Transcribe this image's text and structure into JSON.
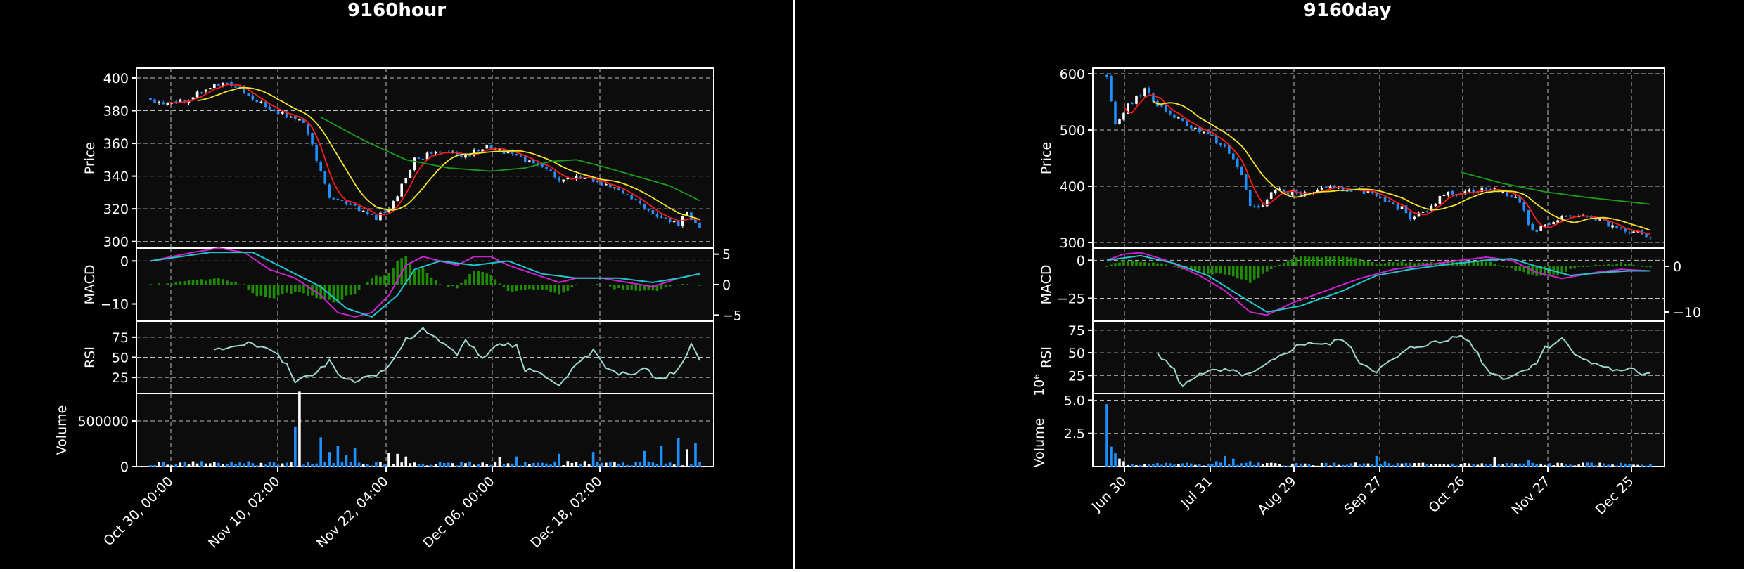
{
  "colors": {
    "background": "#000000",
    "axes_bg": "#0c0c0c",
    "frame": "#ffffff",
    "grid": "#bdbdbd",
    "up": "#ffffff",
    "down": "#1e90ff",
    "sma_short": "#ff1a1a",
    "sma_mid": "#f2e22a",
    "sma_long": "#1a9c1a",
    "macd_line": "#cc22cc",
    "signal_line": "#22c4cc",
    "macd_hist": "#1e8c00",
    "rsi_line": "#9cd6cc",
    "text": "#ffffff"
  },
  "charts": [
    {
      "id": "hour",
      "title": "9160hour",
      "price_label": "Price",
      "macd_label": "MACD",
      "rsi_label": "RSI",
      "volume_label": "Volume",
      "volume_exponent": "",
      "x_tick_labels": [
        "Oct 30, 00:00",
        "Nov 10, 02:00",
        "Nov 22, 04:00",
        "Dec 06, 00:00",
        "Dec 18, 02:00"
      ],
      "price_ticks": [
        "300",
        "320",
        "340",
        "360",
        "380",
        "400"
      ],
      "macd_left_ticks": [
        "0",
        "−10"
      ],
      "macd_right_ticks": [
        "5",
        "0",
        "−5"
      ],
      "rsi_ticks": [
        "75",
        "50",
        "25"
      ],
      "volume_ticks": [
        "500000",
        "0"
      ]
    },
    {
      "id": "day",
      "title": "9160day",
      "price_label": "Price",
      "macd_label": "MACD",
      "rsi_label": "RSI",
      "volume_label": "Volume",
      "volume_exponent": "10⁶",
      "x_tick_labels": [
        "Jun 30",
        "Jul 31",
        "Aug 29",
        "Sep 27",
        "Oct 26",
        "Nov 27",
        "Dec 25"
      ],
      "price_ticks": [
        "300",
        "400",
        "500",
        "600"
      ],
      "macd_left_ticks": [
        "0",
        "−25"
      ],
      "macd_right_ticks": [
        "0",
        "−10"
      ],
      "rsi_ticks": [
        "75",
        "50",
        "25"
      ],
      "volume_ticks": [
        "5.0",
        "2.5"
      ]
    }
  ],
  "chart_data": [
    {
      "type": "candlestick",
      "title": "9160hour",
      "ylabel": "Price",
      "ylim": [
        296,
        406
      ],
      "x_tick_labels": [
        "Oct 30, 00:00",
        "Nov 10, 02:00",
        "Nov 22, 04:00",
        "Dec 06, 00:00",
        "Dec 18, 02:00"
      ],
      "n_bars": 130,
      "close_anchors": [
        [
          0,
          386
        ],
        [
          6,
          384
        ],
        [
          12,
          392
        ],
        [
          18,
          398
        ],
        [
          22,
          392
        ],
        [
          27,
          383
        ],
        [
          32,
          377
        ],
        [
          36,
          372
        ],
        [
          38,
          358
        ],
        [
          40,
          342
        ],
        [
          42,
          328
        ],
        [
          46,
          324
        ],
        [
          50,
          318
        ],
        [
          53,
          314
        ],
        [
          56,
          320
        ],
        [
          58,
          328
        ],
        [
          60,
          340
        ],
        [
          62,
          350
        ],
        [
          66,
          354
        ],
        [
          70,
          356
        ],
        [
          74,
          352
        ],
        [
          78,
          358
        ],
        [
          82,
          356
        ],
        [
          86,
          352
        ],
        [
          90,
          348
        ],
        [
          94,
          344
        ],
        [
          96,
          336
        ],
        [
          100,
          340
        ],
        [
          104,
          338
        ],
        [
          108,
          333
        ],
        [
          112,
          328
        ],
        [
          116,
          322
        ],
        [
          120,
          314
        ],
        [
          124,
          311
        ],
        [
          126,
          318
        ],
        [
          128,
          310
        ],
        [
          129,
          308
        ]
      ],
      "sma_long": {
        "start_index": 40,
        "anchors": [
          [
            40,
            376
          ],
          [
            50,
            362
          ],
          [
            60,
            350
          ],
          [
            70,
            345
          ],
          [
            80,
            343
          ],
          [
            88,
            345
          ],
          [
            94,
            349
          ],
          [
            100,
            350
          ],
          [
            106,
            346
          ],
          [
            114,
            340
          ],
          [
            122,
            334
          ],
          [
            129,
            325
          ]
        ]
      },
      "volume": {
        "ylim": [
          0,
          800000
        ],
        "base": 30000,
        "spikes": [
          [
            34,
            440000
          ],
          [
            35,
            820000
          ],
          [
            40,
            320000
          ],
          [
            42,
            160000
          ],
          [
            44,
            230000
          ],
          [
            46,
            130000
          ],
          [
            48,
            200000
          ],
          [
            56,
            150000
          ],
          [
            58,
            140000
          ],
          [
            60,
            110000
          ],
          [
            82,
            100000
          ],
          [
            86,
            110000
          ],
          [
            96,
            140000
          ],
          [
            104,
            160000
          ],
          [
            116,
            170000
          ],
          [
            120,
            230000
          ],
          [
            124,
            310000
          ],
          [
            126,
            190000
          ],
          [
            128,
            260000
          ]
        ]
      },
      "macd": {
        "left_ylim": [
          -14,
          3
        ],
        "right_ylim": [
          -6,
          6
        ],
        "line_anchors": [
          [
            0,
            0
          ],
          [
            10,
            2
          ],
          [
            16,
            3
          ],
          [
            22,
            2
          ],
          [
            28,
            -2
          ],
          [
            34,
            -4
          ],
          [
            40,
            -8
          ],
          [
            44,
            -12
          ],
          [
            48,
            -13
          ],
          [
            52,
            -12
          ],
          [
            56,
            -8
          ],
          [
            60,
            -1
          ],
          [
            64,
            1
          ],
          [
            68,
            0
          ],
          [
            72,
            -1
          ],
          [
            76,
            1
          ],
          [
            80,
            1
          ],
          [
            84,
            -1
          ],
          [
            90,
            -3
          ],
          [
            96,
            -5
          ],
          [
            100,
            -4
          ],
          [
            106,
            -4
          ],
          [
            112,
            -5
          ],
          [
            118,
            -6
          ],
          [
            124,
            -4
          ],
          [
            129,
            -3
          ]
        ],
        "signal_anchors": [
          [
            0,
            0
          ],
          [
            14,
            2
          ],
          [
            24,
            2
          ],
          [
            32,
            -2
          ],
          [
            40,
            -6
          ],
          [
            46,
            -11
          ],
          [
            52,
            -13
          ],
          [
            58,
            -8
          ],
          [
            62,
            -2
          ],
          [
            68,
            0
          ],
          [
            76,
            -1
          ],
          [
            84,
            0
          ],
          [
            92,
            -3
          ],
          [
            100,
            -4
          ],
          [
            110,
            -4
          ],
          [
            118,
            -5
          ],
          [
            124,
            -4
          ],
          [
            129,
            -3
          ]
        ]
      },
      "rsi": {
        "ylim": [
          5,
          95
        ],
        "start_index": 15,
        "anchors": [
          [
            15,
            60
          ],
          [
            22,
            68
          ],
          [
            28,
            60
          ],
          [
            32,
            42
          ],
          [
            34,
            20
          ],
          [
            38,
            28
          ],
          [
            42,
            45
          ],
          [
            44,
            30
          ],
          [
            48,
            20
          ],
          [
            52,
            25
          ],
          [
            56,
            40
          ],
          [
            60,
            72
          ],
          [
            64,
            85
          ],
          [
            68,
            70
          ],
          [
            72,
            55
          ],
          [
            74,
            72
          ],
          [
            76,
            60
          ],
          [
            78,
            48
          ],
          [
            82,
            68
          ],
          [
            86,
            65
          ],
          [
            88,
            35
          ],
          [
            92,
            30
          ],
          [
            96,
            15
          ],
          [
            100,
            40
          ],
          [
            104,
            58
          ],
          [
            108,
            32
          ],
          [
            112,
            28
          ],
          [
            116,
            35
          ],
          [
            120,
            22
          ],
          [
            124,
            35
          ],
          [
            127,
            65
          ],
          [
            129,
            45
          ]
        ]
      }
    },
    {
      "type": "candlestick",
      "title": "9160day",
      "ylabel": "Price",
      "ylim": [
        290,
        610
      ],
      "x_tick_labels": [
        "Jun 30",
        "Jul 31",
        "Aug 29",
        "Sep 27",
        "Oct 26",
        "Nov 27",
        "Dec 25"
      ],
      "n_bars": 130,
      "close_anchors": [
        [
          0,
          590
        ],
        [
          2,
          510
        ],
        [
          5,
          545
        ],
        [
          9,
          570
        ],
        [
          12,
          545
        ],
        [
          18,
          515
        ],
        [
          24,
          490
        ],
        [
          28,
          470
        ],
        [
          32,
          420
        ],
        [
          34,
          365
        ],
        [
          37,
          365
        ],
        [
          40,
          395
        ],
        [
          46,
          385
        ],
        [
          52,
          395
        ],
        [
          58,
          395
        ],
        [
          62,
          390
        ],
        [
          66,
          370
        ],
        [
          70,
          360
        ],
        [
          72,
          345
        ],
        [
          76,
          360
        ],
        [
          80,
          385
        ],
        [
          84,
          390
        ],
        [
          90,
          395
        ],
        [
          94,
          390
        ],
        [
          98,
          375
        ],
        [
          100,
          330
        ],
        [
          102,
          320
        ],
        [
          106,
          340
        ],
        [
          110,
          350
        ],
        [
          114,
          345
        ],
        [
          118,
          335
        ],
        [
          122,
          325
        ],
        [
          125,
          320
        ],
        [
          129,
          310
        ]
      ],
      "sma_long": {
        "start_index": 84,
        "anchors": [
          [
            84,
            425
          ],
          [
            94,
            405
          ],
          [
            104,
            390
          ],
          [
            114,
            380
          ],
          [
            129,
            368
          ]
        ]
      },
      "volume": {
        "ylim": [
          0,
          5.5
        ],
        "base": 0.15,
        "spikes": [
          [
            0,
            4.7
          ],
          [
            1,
            1.5
          ],
          [
            2,
            1.0
          ],
          [
            3,
            0.6
          ],
          [
            4,
            0.4
          ],
          [
            26,
            0.4
          ],
          [
            28,
            0.8
          ],
          [
            30,
            0.6
          ],
          [
            34,
            0.4
          ],
          [
            64,
            0.8
          ],
          [
            66,
            0.4
          ],
          [
            92,
            0.7
          ],
          [
            100,
            0.5
          ]
        ]
      },
      "macd": {
        "left_ylim": [
          -40,
          8
        ],
        "right_ylim": [
          -12,
          4
        ],
        "line_anchors": [
          [
            0,
            0
          ],
          [
            4,
            4
          ],
          [
            8,
            5
          ],
          [
            14,
            0
          ],
          [
            22,
            -10
          ],
          [
            28,
            -20
          ],
          [
            34,
            -34
          ],
          [
            38,
            -36
          ],
          [
            44,
            -28
          ],
          [
            52,
            -20
          ],
          [
            60,
            -12
          ],
          [
            68,
            -6
          ],
          [
            76,
            -3
          ],
          [
            84,
            0
          ],
          [
            90,
            2
          ],
          [
            96,
            0
          ],
          [
            102,
            -8
          ],
          [
            108,
            -12
          ],
          [
            116,
            -8
          ],
          [
            122,
            -6
          ],
          [
            129,
            -7
          ]
        ],
        "signal_anchors": [
          [
            0,
            0
          ],
          [
            8,
            3
          ],
          [
            16,
            -2
          ],
          [
            24,
            -10
          ],
          [
            32,
            -24
          ],
          [
            38,
            -34
          ],
          [
            46,
            -30
          ],
          [
            56,
            -20
          ],
          [
            64,
            -10
          ],
          [
            72,
            -6
          ],
          [
            80,
            -3
          ],
          [
            90,
            0
          ],
          [
            96,
            1
          ],
          [
            102,
            -4
          ],
          [
            110,
            -10
          ],
          [
            118,
            -8
          ],
          [
            124,
            -7
          ],
          [
            129,
            -7
          ]
        ]
      },
      "rsi": {
        "ylim": [
          5,
          85
        ],
        "start_index": 12,
        "anchors": [
          [
            12,
            50
          ],
          [
            16,
            30
          ],
          [
            18,
            12
          ],
          [
            22,
            28
          ],
          [
            28,
            30
          ],
          [
            34,
            25
          ],
          [
            40,
            42
          ],
          [
            44,
            55
          ],
          [
            48,
            62
          ],
          [
            52,
            58
          ],
          [
            56,
            66
          ],
          [
            60,
            40
          ],
          [
            64,
            30
          ],
          [
            68,
            42
          ],
          [
            72,
            55
          ],
          [
            76,
            60
          ],
          [
            80,
            62
          ],
          [
            84,
            72
          ],
          [
            88,
            50
          ],
          [
            90,
            32
          ],
          [
            94,
            22
          ],
          [
            98,
            28
          ],
          [
            102,
            40
          ],
          [
            104,
            55
          ],
          [
            108,
            66
          ],
          [
            110,
            55
          ],
          [
            114,
            40
          ],
          [
            118,
            35
          ],
          [
            122,
            28
          ],
          [
            125,
            32
          ],
          [
            127,
            27
          ],
          [
            129,
            29
          ]
        ]
      }
    }
  ]
}
